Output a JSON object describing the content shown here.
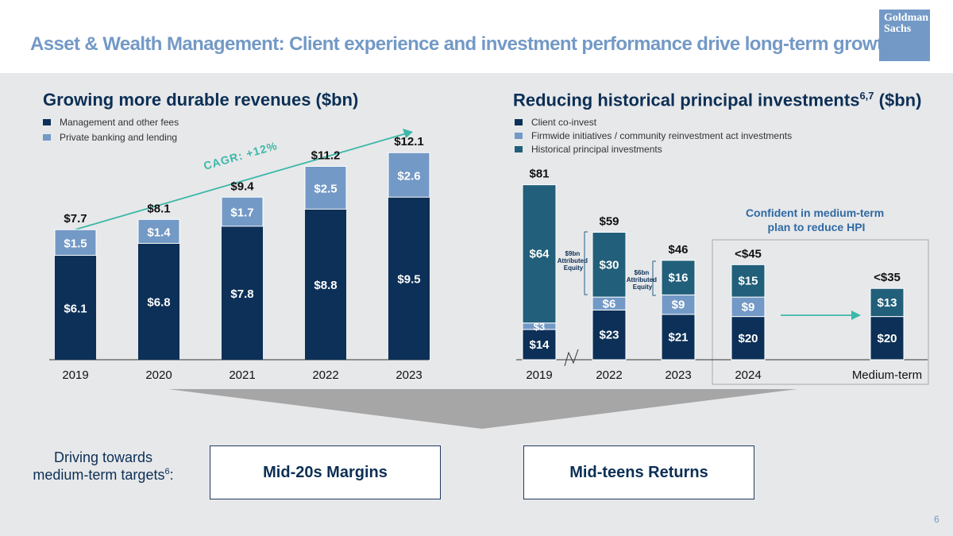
{
  "header": {
    "title": "Asset & Wealth Management: Client experience and investment performance drive long-term growth",
    "logo_line1": "Goldman",
    "logo_line2": "Sachs"
  },
  "colors": {
    "navy": "#0c3057",
    "light_blue": "#7399c6",
    "teal": "#215f7a",
    "accent_teal": "#3bb8a8",
    "text_navy": "#0c2f55"
  },
  "chart_data": [
    {
      "type": "bar",
      "title": "Growing more durable revenues ($bn)",
      "categories": [
        "2019",
        "2020",
        "2021",
        "2022",
        "2023"
      ],
      "series": [
        {
          "name": "Management and other fees",
          "values": [
            6.1,
            6.8,
            7.8,
            8.8,
            9.5
          ],
          "labels": [
            "$6.1",
            "$6.8",
            "$7.8",
            "$8.8",
            "$9.5"
          ]
        },
        {
          "name": "Private banking and lending",
          "values": [
            1.5,
            1.4,
            1.7,
            2.5,
            2.6
          ],
          "labels": [
            "$1.5",
            "$1.4",
            "$1.7",
            "$2.5",
            "$2.6"
          ]
        }
      ],
      "totals": [
        "$7.7",
        "$8.1",
        "$9.4",
        "$11.2",
        "$12.1"
      ],
      "annotation": "CAGR: +12%",
      "ylim": [
        0,
        13
      ]
    },
    {
      "type": "bar",
      "title": "Reducing historical principal investments",
      "title_superscript": "6,7",
      "title_suffix": "($bn)",
      "categories": [
        "2019",
        "2022",
        "2023",
        "2024",
        "Medium-term"
      ],
      "series": [
        {
          "name": "Client co-invest",
          "values": [
            14,
            23,
            21,
            20,
            20
          ],
          "labels": [
            "$14",
            "$23",
            "$21",
            "$20",
            "$20"
          ]
        },
        {
          "name": "Firmwide initiatives / community reinvestment act investments",
          "values": [
            3,
            6,
            9,
            9,
            0
          ],
          "labels": [
            "$3",
            "$6",
            "$9",
            "$9",
            ""
          ]
        },
        {
          "name": "Historical principal investments",
          "values": [
            64,
            30,
            16,
            15,
            13
          ],
          "labels": [
            "$64",
            "$30",
            "$16",
            "$15",
            "$13"
          ]
        }
      ],
      "totals": [
        "$81",
        "$59",
        "$46",
        "<$45",
        "<$35"
      ],
      "annotations": {
        "equity_2022": [
          "$9bn",
          "Attributed",
          "Equity"
        ],
        "equity_2023": [
          "$6bn",
          "Attributed",
          "Equity"
        ],
        "confident": [
          "Confident in medium-term",
          "plan to reduce HPI"
        ]
      },
      "ylim": [
        0,
        85
      ]
    }
  ],
  "bottom": {
    "driving_prefix": "Driving towards medium-term targets",
    "driving_sup": "6",
    "driving_suffix": ":",
    "box1": "Mid-20s Margins",
    "box2": "Mid-teens Returns"
  },
  "page_number": "6"
}
